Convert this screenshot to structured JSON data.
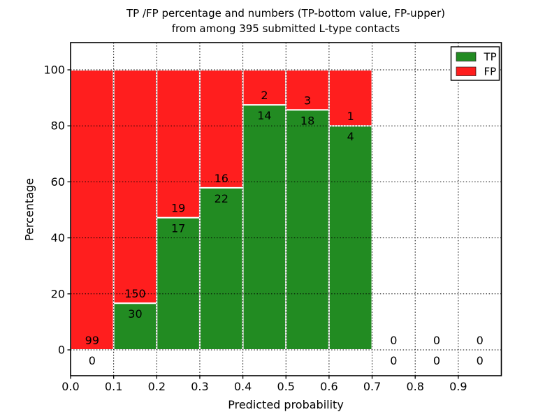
{
  "figure": {
    "background": "#ffffff"
  },
  "chart_data": {
    "type": "bar",
    "stacked": true,
    "orientation": "vertical",
    "title_line1": "TP /FP percentage and numbers (TP-bottom value, FP-upper)",
    "title_line2": "from among 395 submitted L-type contacts",
    "xlabel": "Predicted probability",
    "ylabel": "Percentage",
    "total_submitted": 395,
    "x_tick_labels": [
      "0.0",
      "0.1",
      "0.2",
      "0.3",
      "0.4",
      "0.5",
      "0.6",
      "0.7",
      "0.8",
      "0.9"
    ],
    "x_tick_values": [
      0.0,
      0.1,
      0.2,
      0.3,
      0.4,
      0.5,
      0.6,
      0.7,
      0.8,
      0.9
    ],
    "y_tick_labels": [
      "0",
      "20",
      "40",
      "60",
      "80",
      "100"
    ],
    "y_tick_values": [
      0,
      20,
      40,
      60,
      80,
      100
    ],
    "xlim": [
      0.0,
      1.0
    ],
    "ylim": [
      -10,
      110
    ],
    "bin_width": 0.1,
    "bin_starts": [
      0.0,
      0.1,
      0.2,
      0.3,
      0.4,
      0.5,
      0.6,
      0.7,
      0.8,
      0.9
    ],
    "grid": "dotted",
    "grid_color": "#000000",
    "bar_edge_color": "#ffffff",
    "series": [
      {
        "name": "TP",
        "color": "#228b22",
        "counts": [
          0,
          30,
          17,
          22,
          14,
          18,
          4,
          0,
          0,
          0
        ]
      },
      {
        "name": "FP",
        "color": "#ff1e1e",
        "counts": [
          99,
          150,
          19,
          16,
          2,
          3,
          1,
          0,
          0,
          0
        ]
      }
    ],
    "tp_percent_approx": [
      0,
      16.7,
      47.2,
      57.9,
      87.5,
      85.7,
      80.0,
      0,
      0,
      0
    ],
    "legend": {
      "position": "upper right",
      "entries": [
        {
          "label": "TP",
          "color": "#228b22"
        },
        {
          "label": "FP",
          "color": "#ff1e1e"
        }
      ]
    }
  }
}
